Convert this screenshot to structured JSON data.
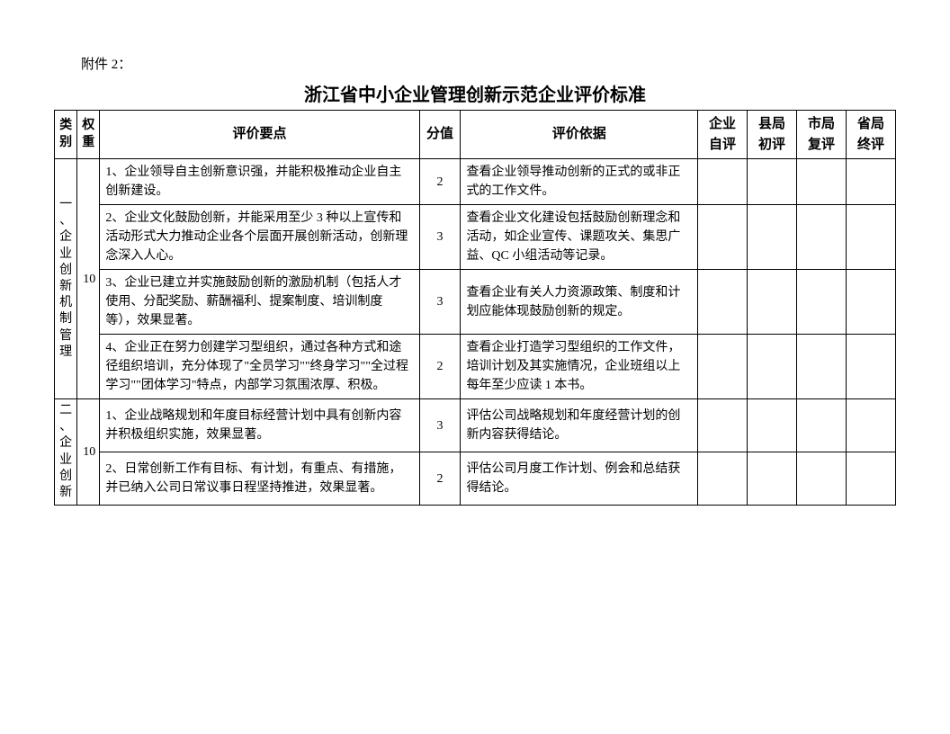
{
  "attachment_label": "附件 2：",
  "title": "浙江省中小企业管理创新示范企业评价标准",
  "headers": {
    "category": "类别",
    "weight": "权重",
    "criteria": "评价要点",
    "score": "分值",
    "basis": "评价依据",
    "self_eval": "企业自评",
    "county_eval": "县局初评",
    "city_eval": "市局复评",
    "province_eval": "省局终评"
  },
  "sections": [
    {
      "category": "一、企业创新机制管理",
      "weight": "10",
      "rows": [
        {
          "criteria": "1、企业领导自主创新意识强，并能积极推动企业自主创新建设。",
          "score": "2",
          "basis": "查看企业领导推动创新的正式的或非正式的工作文件。"
        },
        {
          "criteria": "2、企业文化鼓励创新，并能采用至少 3 种以上宣传和活动形式大力推动企业各个层面开展创新活动，创新理念深入人心。",
          "score": "3",
          "basis": "查看企业文化建设包括鼓励创新理念和活动，如企业宣传、课题攻关、集思广益、QC 小组活动等记录。"
        },
        {
          "criteria": "3、企业已建立并实施鼓励创新的激励机制（包括人才使用、分配奖励、薪酬福利、提案制度、培训制度等），效果显著。",
          "score": "3",
          "basis": "查看企业有关人力资源政策、制度和计划应能体现鼓励创新的规定。"
        },
        {
          "criteria": "4、企业正在努力创建学习型组织，通过各种方式和途径组织培训，充分体现了\"全员学习\"\"终身学习\"\"全过程学习\"\"团体学习\"特点，内部学习氛围浓厚、积极。",
          "score": "2",
          "basis": "查看企业打造学习型组织的工作文件，培训计划及其实施情况，企业班组以上每年至少应读 1 本书。"
        }
      ]
    },
    {
      "category": "二、企业创新",
      "weight": "10",
      "rows": [
        {
          "criteria": "1、企业战略规划和年度目标经营计划中具有创新内容并积极组织实施，效果显著。",
          "score": "3",
          "basis": "评估公司战略规划和年度经营计划的创新内容获得结论。"
        },
        {
          "criteria": "2、日常创新工作有目标、有计划，有重点、有措施，并已纳入公司日常议事日程坚持推进，效果显著。",
          "score": "2",
          "basis": "评估公司月度工作计划、例会和总结获得结论。"
        }
      ]
    }
  ]
}
